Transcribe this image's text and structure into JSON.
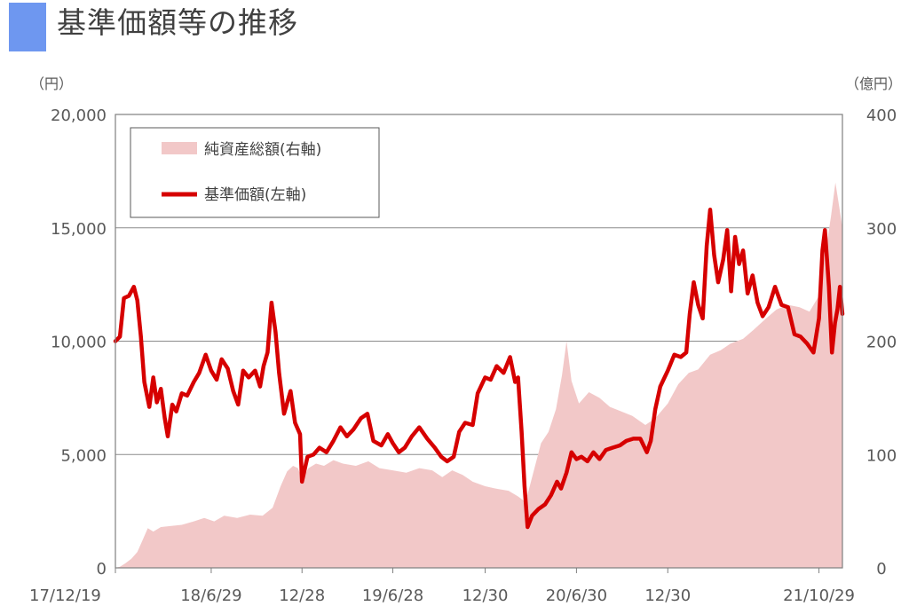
{
  "page": {
    "title": "基準価額等の推移"
  },
  "chart_data": {
    "type": "line",
    "title": "基準価額等の推移",
    "left_axis": {
      "unit_label": "（円）",
      "ylim": [
        0,
        20000
      ],
      "ticks": [
        "0",
        "5,000",
        "10,000",
        "15,000",
        "20,000"
      ],
      "tick_values": [
        0,
        5000,
        10000,
        15000,
        20000
      ]
    },
    "right_axis": {
      "unit_label": "（億円）",
      "ylim": [
        0,
        400
      ],
      "ticks": [
        "0",
        "100",
        "200",
        "300",
        "400"
      ],
      "tick_values": [
        0,
        100,
        200,
        300,
        400
      ]
    },
    "x_tick_labels": [
      "17/12/19",
      "18/6/29",
      "12/28",
      "19/6/28",
      "12/30",
      "20/6/30",
      "12/30",
      "21/10/29"
    ],
    "x_tick_dates": [
      "2017-12-19",
      "2018-06-29",
      "2018-12-28",
      "2019-06-28",
      "2019-12-30",
      "2020-06-30",
      "2020-12-30",
      "2021-10-29"
    ],
    "x_range": [
      "2017-12-19",
      "2021-12-15"
    ],
    "legend": {
      "placement": "top-left",
      "items": [
        {
          "label": "純資産総額(右軸)",
          "swatch": "area",
          "color": "#f2c8c8"
        },
        {
          "label": "基準価額(左軸)",
          "swatch": "line",
          "color": "#d60000"
        }
      ]
    },
    "grid": true,
    "series": [
      {
        "name": "基準価額(左軸)",
        "axis": "left",
        "type": "line",
        "color": "#d60000",
        "points": [
          [
            "2017-12-19",
            10000
          ],
          [
            "2017-12-28",
            10200
          ],
          [
            "2018-01-05",
            11900
          ],
          [
            "2018-01-15",
            12000
          ],
          [
            "2018-01-25",
            12400
          ],
          [
            "2018-02-01",
            11800
          ],
          [
            "2018-02-08",
            10200
          ],
          [
            "2018-02-15",
            8200
          ],
          [
            "2018-02-25",
            7100
          ],
          [
            "2018-03-05",
            8400
          ],
          [
            "2018-03-12",
            7300
          ],
          [
            "2018-03-20",
            7900
          ],
          [
            "2018-03-28",
            6600
          ],
          [
            "2018-04-03",
            5800
          ],
          [
            "2018-04-12",
            7200
          ],
          [
            "2018-04-20",
            6900
          ],
          [
            "2018-05-01",
            7700
          ],
          [
            "2018-05-12",
            7600
          ],
          [
            "2018-05-25",
            8200
          ],
          [
            "2018-06-05",
            8600
          ],
          [
            "2018-06-18",
            9400
          ],
          [
            "2018-06-29",
            8700
          ],
          [
            "2018-07-10",
            8300
          ],
          [
            "2018-07-20",
            9200
          ],
          [
            "2018-08-01",
            8800
          ],
          [
            "2018-08-12",
            7800
          ],
          [
            "2018-08-22",
            7200
          ],
          [
            "2018-09-01",
            8700
          ],
          [
            "2018-09-12",
            8400
          ],
          [
            "2018-09-25",
            8700
          ],
          [
            "2018-10-05",
            8000
          ],
          [
            "2018-10-12",
            8900
          ],
          [
            "2018-10-20",
            9500
          ],
          [
            "2018-10-28",
            11700
          ],
          [
            "2018-11-05",
            10400
          ],
          [
            "2018-11-12",
            8600
          ],
          [
            "2018-11-22",
            6800
          ],
          [
            "2018-12-05",
            7800
          ],
          [
            "2018-12-14",
            6400
          ],
          [
            "2018-12-24",
            5900
          ],
          [
            "2018-12-28",
            3800
          ],
          [
            "2019-01-08",
            4900
          ],
          [
            "2019-01-20",
            5000
          ],
          [
            "2019-02-01",
            5300
          ],
          [
            "2019-02-15",
            5100
          ],
          [
            "2019-03-01",
            5600
          ],
          [
            "2019-03-15",
            6200
          ],
          [
            "2019-03-28",
            5800
          ],
          [
            "2019-04-10",
            6100
          ],
          [
            "2019-04-25",
            6600
          ],
          [
            "2019-05-08",
            6800
          ],
          [
            "2019-05-20",
            5600
          ],
          [
            "2019-06-05",
            5400
          ],
          [
            "2019-06-18",
            5900
          ],
          [
            "2019-06-28",
            5500
          ],
          [
            "2019-07-10",
            5100
          ],
          [
            "2019-07-22",
            5300
          ],
          [
            "2019-08-05",
            5800
          ],
          [
            "2019-08-20",
            6200
          ],
          [
            "2019-09-05",
            5700
          ],
          [
            "2019-09-20",
            5300
          ],
          [
            "2019-10-03",
            4900
          ],
          [
            "2019-10-15",
            4700
          ],
          [
            "2019-10-28",
            4900
          ],
          [
            "2019-11-08",
            6000
          ],
          [
            "2019-11-20",
            6400
          ],
          [
            "2019-12-05",
            6300
          ],
          [
            "2019-12-15",
            7700
          ],
          [
            "2019-12-30",
            8400
          ],
          [
            "2020-01-10",
            8300
          ],
          [
            "2020-01-22",
            8900
          ],
          [
            "2020-02-05",
            8600
          ],
          [
            "2020-02-18",
            9300
          ],
          [
            "2020-02-28",
            8200
          ],
          [
            "2020-03-05",
            8400
          ],
          [
            "2020-03-12",
            6000
          ],
          [
            "2020-03-18",
            3600
          ],
          [
            "2020-03-24",
            1800
          ],
          [
            "2020-04-02",
            2300
          ],
          [
            "2020-04-15",
            2600
          ],
          [
            "2020-04-28",
            2800
          ],
          [
            "2020-05-10",
            3200
          ],
          [
            "2020-05-22",
            3800
          ],
          [
            "2020-05-30",
            3500
          ],
          [
            "2020-06-10",
            4200
          ],
          [
            "2020-06-20",
            5100
          ],
          [
            "2020-06-30",
            4800
          ],
          [
            "2020-07-10",
            4900
          ],
          [
            "2020-07-22",
            4700
          ],
          [
            "2020-08-03",
            5100
          ],
          [
            "2020-08-15",
            4800
          ],
          [
            "2020-08-28",
            5200
          ],
          [
            "2020-09-10",
            5300
          ],
          [
            "2020-09-25",
            5400
          ],
          [
            "2020-10-08",
            5600
          ],
          [
            "2020-10-22",
            5700
          ],
          [
            "2020-11-05",
            5700
          ],
          [
            "2020-11-18",
            5100
          ],
          [
            "2020-11-26",
            5600
          ],
          [
            "2020-12-05",
            7000
          ],
          [
            "2020-12-15",
            8000
          ],
          [
            "2020-12-30",
            8700
          ],
          [
            "2021-01-12",
            9400
          ],
          [
            "2021-01-25",
            9300
          ],
          [
            "2021-02-05",
            9500
          ],
          [
            "2021-02-12",
            11200
          ],
          [
            "2021-02-20",
            12600
          ],
          [
            "2021-03-01",
            11600
          ],
          [
            "2021-03-10",
            11000
          ],
          [
            "2021-03-18",
            14200
          ],
          [
            "2021-03-25",
            15800
          ],
          [
            "2021-04-02",
            13800
          ],
          [
            "2021-04-10",
            12600
          ],
          [
            "2021-04-20",
            13600
          ],
          [
            "2021-04-28",
            14900
          ],
          [
            "2021-05-06",
            12200
          ],
          [
            "2021-05-14",
            14600
          ],
          [
            "2021-05-22",
            13400
          ],
          [
            "2021-05-30",
            14000
          ],
          [
            "2021-06-08",
            12100
          ],
          [
            "2021-06-18",
            12900
          ],
          [
            "2021-06-28",
            11700
          ],
          [
            "2021-07-08",
            11100
          ],
          [
            "2021-07-20",
            11500
          ],
          [
            "2021-08-02",
            12400
          ],
          [
            "2021-08-15",
            11600
          ],
          [
            "2021-08-28",
            11500
          ],
          [
            "2021-09-10",
            10300
          ],
          [
            "2021-09-22",
            10200
          ],
          [
            "2021-10-05",
            9900
          ],
          [
            "2021-10-18",
            9500
          ],
          [
            "2021-10-29",
            11000
          ],
          [
            "2021-11-05",
            14000
          ],
          [
            "2021-11-10",
            14900
          ],
          [
            "2021-11-18",
            12400
          ],
          [
            "2021-11-24",
            9500
          ],
          [
            "2021-11-30",
            10800
          ],
          [
            "2021-12-05",
            11400
          ],
          [
            "2021-12-10",
            12400
          ],
          [
            "2021-12-15",
            11200
          ]
        ]
      },
      {
        "name": "純資産総額(右軸)",
        "axis": "right",
        "type": "area",
        "color": "#f2c8c8",
        "points": [
          [
            "2017-12-19",
            0
          ],
          [
            "2017-12-28",
            1
          ],
          [
            "2018-01-08",
            4
          ],
          [
            "2018-01-20",
            8
          ],
          [
            "2018-02-01",
            14
          ],
          [
            "2018-02-12",
            25
          ],
          [
            "2018-02-22",
            35
          ],
          [
            "2018-03-05",
            32
          ],
          [
            "2018-03-20",
            36
          ],
          [
            "2018-04-10",
            37
          ],
          [
            "2018-05-01",
            38
          ],
          [
            "2018-05-25",
            41
          ],
          [
            "2018-06-15",
            44
          ],
          [
            "2018-07-05",
            41
          ],
          [
            "2018-07-25",
            46
          ],
          [
            "2018-08-20",
            44
          ],
          [
            "2018-09-15",
            47
          ],
          [
            "2018-10-10",
            46
          ],
          [
            "2018-10-30",
            53
          ],
          [
            "2018-11-15",
            72
          ],
          [
            "2018-11-28",
            85
          ],
          [
            "2018-12-10",
            90
          ],
          [
            "2018-12-20",
            88
          ],
          [
            "2018-12-28",
            78
          ],
          [
            "2019-01-10",
            88
          ],
          [
            "2019-01-25",
            92
          ],
          [
            "2019-02-10",
            90
          ],
          [
            "2019-03-01",
            95
          ],
          [
            "2019-03-20",
            92
          ],
          [
            "2019-04-15",
            90
          ],
          [
            "2019-05-10",
            94
          ],
          [
            "2019-06-01",
            88
          ],
          [
            "2019-06-28",
            86
          ],
          [
            "2019-07-25",
            84
          ],
          [
            "2019-08-20",
            88
          ],
          [
            "2019-09-15",
            86
          ],
          [
            "2019-10-05",
            80
          ],
          [
            "2019-10-25",
            86
          ],
          [
            "2019-11-15",
            82
          ],
          [
            "2019-12-05",
            76
          ],
          [
            "2019-12-30",
            72
          ],
          [
            "2020-01-20",
            70
          ],
          [
            "2020-02-15",
            68
          ],
          [
            "2020-03-05",
            63
          ],
          [
            "2020-03-20",
            58
          ],
          [
            "2020-04-05",
            85
          ],
          [
            "2020-04-20",
            110
          ],
          [
            "2020-05-05",
            120
          ],
          [
            "2020-05-20",
            140
          ],
          [
            "2020-06-01",
            170
          ],
          [
            "2020-06-10",
            200
          ],
          [
            "2020-06-20",
            165
          ],
          [
            "2020-07-05",
            145
          ],
          [
            "2020-07-25",
            155
          ],
          [
            "2020-08-15",
            150
          ],
          [
            "2020-09-05",
            142
          ],
          [
            "2020-09-28",
            138
          ],
          [
            "2020-10-20",
            134
          ],
          [
            "2020-11-15",
            126
          ],
          [
            "2020-12-05",
            132
          ],
          [
            "2020-12-30",
            145
          ],
          [
            "2021-01-20",
            162
          ],
          [
            "2021-02-10",
            172
          ],
          [
            "2021-03-01",
            175
          ],
          [
            "2021-03-25",
            188
          ],
          [
            "2021-04-15",
            192
          ],
          [
            "2021-05-05",
            198
          ],
          [
            "2021-05-30",
            202
          ],
          [
            "2021-06-20",
            210
          ],
          [
            "2021-07-15",
            220
          ],
          [
            "2021-08-05",
            228
          ],
          [
            "2021-08-28",
            232
          ],
          [
            "2021-09-20",
            230
          ],
          [
            "2021-10-10",
            226
          ],
          [
            "2021-10-29",
            240
          ],
          [
            "2021-11-10",
            275
          ],
          [
            "2021-11-22",
            310
          ],
          [
            "2021-12-01",
            340
          ],
          [
            "2021-12-08",
            320
          ],
          [
            "2021-12-15",
            300
          ]
        ]
      }
    ]
  }
}
